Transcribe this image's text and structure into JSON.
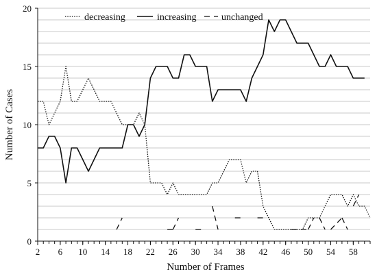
{
  "chart_data": {
    "type": "line",
    "xlabel": "Number of Frames",
    "ylabel": "Number of Cases",
    "xlim": [
      2,
      60
    ],
    "ylim": [
      0,
      20
    ],
    "x_ticks": [
      "2",
      "6",
      "10",
      "14",
      "18",
      "22",
      "26",
      "30",
      "34",
      "38",
      "42",
      "46",
      "50",
      "54",
      "58"
    ],
    "y_ticks": [
      "0",
      "5",
      "10",
      "15",
      "20"
    ],
    "grid": "horizontal",
    "legend": "top",
    "series": [
      {
        "name": "decreasing",
        "style": "dotted",
        "points": [
          [
            2,
            12
          ],
          [
            3,
            12
          ],
          [
            4,
            10
          ],
          [
            5,
            11
          ],
          [
            6,
            12
          ],
          [
            7,
            15
          ],
          [
            8,
            12
          ],
          [
            9,
            12
          ],
          [
            10,
            13
          ],
          [
            11,
            14
          ],
          [
            12,
            13
          ],
          [
            13,
            12
          ],
          [
            14,
            12
          ],
          [
            15,
            12
          ],
          [
            16,
            11
          ],
          [
            17,
            10
          ],
          [
            18,
            10
          ],
          [
            19,
            10
          ],
          [
            20,
            11
          ],
          [
            21,
            10
          ],
          [
            22,
            5
          ],
          [
            23,
            5
          ],
          [
            24,
            5
          ],
          [
            25,
            4
          ],
          [
            26,
            5
          ],
          [
            27,
            4
          ],
          [
            28,
            4
          ],
          [
            29,
            4
          ],
          [
            30,
            4
          ],
          [
            31,
            4
          ],
          [
            32,
            4
          ],
          [
            33,
            5
          ],
          [
            34,
            5
          ],
          [
            35,
            6
          ],
          [
            36,
            7
          ],
          [
            37,
            7
          ],
          [
            38,
            7
          ],
          [
            39,
            5
          ],
          [
            40,
            6
          ],
          [
            41,
            6
          ],
          [
            42,
            3
          ],
          [
            43,
            2
          ],
          [
            44,
            1
          ],
          [
            45,
            1
          ],
          [
            46,
            1
          ],
          [
            47,
            1
          ],
          [
            48,
            1
          ],
          [
            49,
            1
          ],
          [
            50,
            2
          ],
          [
            51,
            2
          ],
          [
            52,
            2
          ],
          [
            53,
            3
          ],
          [
            54,
            4
          ],
          [
            55,
            4
          ],
          [
            56,
            4
          ],
          [
            57,
            3
          ],
          [
            58,
            4
          ],
          [
            59,
            3
          ],
          [
            60,
            3
          ],
          [
            61,
            2
          ]
        ]
      },
      {
        "name": "increasing",
        "style": "solid",
        "points": [
          [
            2,
            8
          ],
          [
            3,
            8
          ],
          [
            4,
            9
          ],
          [
            5,
            9
          ],
          [
            6,
            8
          ],
          [
            7,
            5
          ],
          [
            8,
            8
          ],
          [
            9,
            8
          ],
          [
            10,
            7
          ],
          [
            11,
            6
          ],
          [
            12,
            7
          ],
          [
            13,
            8
          ],
          [
            14,
            8
          ],
          [
            15,
            8
          ],
          [
            16,
            8
          ],
          [
            17,
            8
          ],
          [
            18,
            10
          ],
          [
            19,
            10
          ],
          [
            20,
            9
          ],
          [
            21,
            10
          ],
          [
            22,
            14
          ],
          [
            23,
            15
          ],
          [
            24,
            15
          ],
          [
            25,
            15
          ],
          [
            26,
            14
          ],
          [
            27,
            14
          ],
          [
            28,
            16
          ],
          [
            29,
            16
          ],
          [
            30,
            15
          ],
          [
            31,
            15
          ],
          [
            32,
            15
          ],
          [
            33,
            12
          ],
          [
            34,
            13
          ],
          [
            35,
            13
          ],
          [
            36,
            13
          ],
          [
            37,
            13
          ],
          [
            38,
            13
          ],
          [
            39,
            12
          ],
          [
            40,
            14
          ],
          [
            41,
            15
          ],
          [
            42,
            16
          ],
          [
            43,
            19
          ],
          [
            44,
            18
          ],
          [
            45,
            19
          ],
          [
            46,
            19
          ],
          [
            47,
            18
          ],
          [
            48,
            17
          ],
          [
            49,
            17
          ],
          [
            50,
            17
          ],
          [
            51,
            16
          ],
          [
            52,
            15
          ],
          [
            53,
            15
          ],
          [
            54,
            16
          ],
          [
            55,
            15
          ],
          [
            56,
            15
          ],
          [
            57,
            15
          ],
          [
            58,
            14
          ],
          [
            59,
            14
          ],
          [
            60,
            14
          ]
        ]
      },
      {
        "name": "unchanged",
        "style": "dashed",
        "segments": [
          [
            [
              16,
              1
            ],
            [
              17,
              2
            ]
          ],
          [
            [
              25,
              1
            ],
            [
              26,
              1
            ]
          ],
          [
            [
              26,
              1
            ],
            [
              27,
              2
            ]
          ],
          [
            [
              30,
              1
            ],
            [
              31,
              1
            ]
          ],
          [
            [
              33,
              3
            ],
            [
              34,
              1
            ]
          ],
          [
            [
              37,
              2
            ],
            [
              38,
              2
            ]
          ],
          [
            [
              41,
              2
            ],
            [
              42,
              2
            ]
          ],
          [
            [
              47,
              1
            ],
            [
              50,
              1
            ]
          ],
          [
            [
              50,
              1
            ],
            [
              51,
              2
            ]
          ],
          [
            [
              52,
              2
            ],
            [
              53,
              1
            ]
          ],
          [
            [
              54,
              1
            ],
            [
              56,
              2
            ]
          ],
          [
            [
              56,
              2
            ],
            [
              57,
              1
            ]
          ],
          [
            [
              58,
              3
            ],
            [
              59,
              4
            ]
          ]
        ]
      }
    ]
  }
}
